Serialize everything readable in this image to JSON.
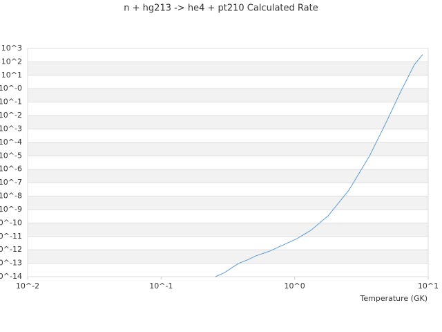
{
  "chart_data": {
    "type": "line",
    "title": "n + hg213 -> he4 + pt210 Calculated Rate",
    "x_label": "Temperature (GK)",
    "xlog": true,
    "ylog": true,
    "grid": true,
    "xlim": [
      0.01,
      10
    ],
    "ylim": [
      1e-14,
      1000
    ],
    "xticks": [
      {
        "value": 0.01,
        "label": "10^-2"
      },
      {
        "value": 0.1,
        "label": "10^-1"
      },
      {
        "value": 1,
        "label": "10^0"
      },
      {
        "value": 10,
        "label": "10^1"
      }
    ],
    "yticks": [
      {
        "value": 1000,
        "label": "10^3"
      },
      {
        "value": 100,
        "label": "10^2"
      },
      {
        "value": 10,
        "label": "10^1"
      },
      {
        "value": 1,
        "label": "10^-0"
      },
      {
        "value": 0.1,
        "label": "10^-1"
      },
      {
        "value": 0.01,
        "label": "10^-2"
      },
      {
        "value": 0.001,
        "label": "10^-3"
      },
      {
        "value": 0.0001,
        "label": "10^-4"
      },
      {
        "value": 1e-05,
        "label": "10^-5"
      },
      {
        "value": 1e-06,
        "label": "10^-6"
      },
      {
        "value": 1e-07,
        "label": "10^-7"
      },
      {
        "value": 1e-08,
        "label": "10^-8"
      },
      {
        "value": 1e-09,
        "label": "10^-9"
      },
      {
        "value": 1e-10,
        "label": "10^-10"
      },
      {
        "value": 1e-11,
        "label": "10^-11"
      },
      {
        "value": 1e-12,
        "label": "10^-12"
      },
      {
        "value": 1e-13,
        "label": "10^-13"
      },
      {
        "value": 1e-14,
        "label": "10^-14"
      }
    ],
    "color": "#5b9bd5",
    "x": [
      0.255,
      0.298,
      0.378,
      0.45,
      0.51,
      0.65,
      0.82,
      1.04,
      1.32,
      1.78,
      2.55,
      3.64,
      4.9,
      6.2,
      7.9,
      9.1
    ],
    "values": [
      1e-14,
      2e-14,
      9.5e-14,
      1.9e-13,
      3.5e-13,
      8e-13,
      2.3e-12,
      6.8e-12,
      2.8e-11,
      3.4e-10,
      2.8e-08,
      1e-05,
      0.0039,
      0.56,
      65,
      350
    ]
  }
}
